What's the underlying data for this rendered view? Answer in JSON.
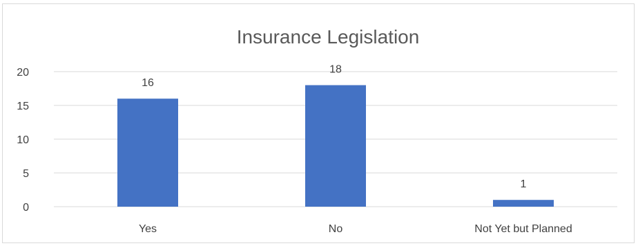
{
  "chart_data": {
    "type": "bar",
    "title": "Insurance Legislation",
    "categories": [
      "Yes",
      "No",
      "Not Yet but Planned"
    ],
    "values": [
      16,
      18,
      1
    ],
    "data_labels": [
      "16",
      "18",
      "1"
    ],
    "xlabel": "",
    "ylabel": "",
    "ylim": [
      0,
      20
    ],
    "yticks": [
      0,
      5,
      10,
      15,
      20
    ],
    "ytick_labels": [
      "0",
      "5",
      "10",
      "15",
      "20"
    ],
    "grid": true,
    "legend": "none",
    "colors": {
      "bar": "#4472c4",
      "grid": "#d9d9d9",
      "text": "#404040",
      "title": "#595959"
    }
  }
}
